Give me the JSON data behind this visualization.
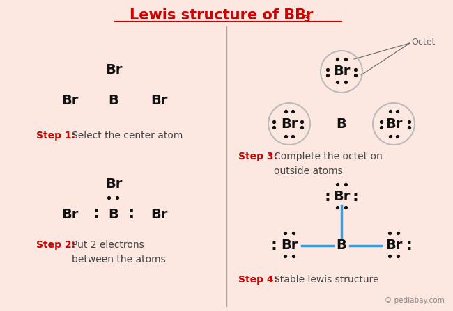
{
  "bg_color": "#fce8e0",
  "divider_color": "#aaaaaa",
  "label_color": "#cc0000",
  "text_color": "#444444",
  "atom_color": "#111111",
  "bond_color": "#3a9de0",
  "circle_edge": "#bbbbbb",
  "octet_color": "#666666",
  "step1_label": "Step 1:",
  "step1_text": "Select the center atom",
  "step2_label": "Step 2:",
  "step2_text": "Put 2 electrons\nbetween the atoms",
  "step3_label": "Step 3:",
  "step3_text": "Complete the octet on\noutside atoms",
  "step4_label": "Step 4:",
  "step4_text": "Stable lewis structure"
}
